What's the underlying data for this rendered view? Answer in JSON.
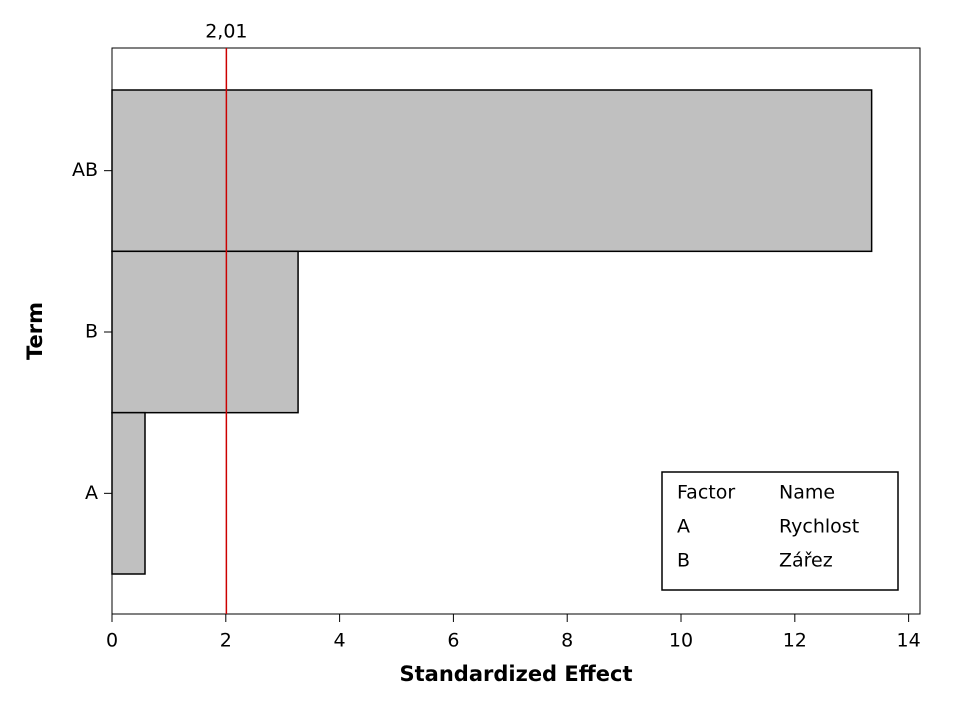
{
  "chart_data": {
    "type": "barh",
    "x_label": "Standardized Effect",
    "y_label": "Term",
    "categories": [
      "AB",
      "B",
      "A"
    ],
    "values": [
      13.35,
      3.27,
      0.58
    ],
    "color": "#c0c0c0",
    "xlim": [
      0,
      14.2
    ],
    "xticks": [
      0,
      2,
      4,
      6,
      8,
      10,
      12,
      14
    ],
    "reference_line": {
      "value": 2.01,
      "label": "2,01",
      "color": "#cc0000"
    },
    "factor_table": {
      "header": [
        "Factor",
        "Name"
      ],
      "rows": [
        [
          "A",
          "Rychlost"
        ],
        [
          "B",
          "Zářez"
        ]
      ]
    }
  }
}
